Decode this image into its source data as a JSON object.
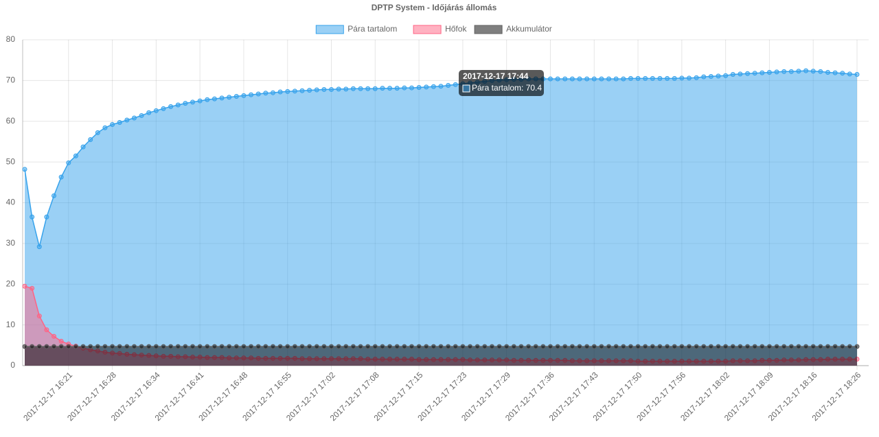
{
  "chart_data": {
    "type": "line",
    "title": "DPTP System - Időjárás állomás",
    "categories": [
      null,
      null,
      null,
      null,
      null,
      null,
      "2017-12-17 16:21",
      null,
      null,
      null,
      null,
      null,
      "2017-12-17 16:28",
      null,
      null,
      null,
      null,
      null,
      "2017-12-17 16:34",
      null,
      null,
      null,
      null,
      null,
      "2017-12-17 16:41",
      null,
      null,
      null,
      null,
      null,
      "2017-12-17 16:48",
      null,
      null,
      null,
      null,
      null,
      "2017-12-17 16:55",
      null,
      null,
      null,
      null,
      null,
      "2017-12-17 17:02",
      null,
      null,
      null,
      null,
      null,
      "2017-12-17 17:08",
      null,
      null,
      null,
      null,
      null,
      "2017-12-17 17:15",
      null,
      null,
      null,
      null,
      null,
      "2017-12-17 17:23",
      null,
      null,
      null,
      null,
      null,
      "2017-12-17 17:29",
      null,
      null,
      null,
      null,
      null,
      "2017-12-17 17:36",
      null,
      null,
      null,
      null,
      null,
      "2017-12-17 17:43",
      null,
      null,
      null,
      null,
      null,
      "2017-12-17 17:50",
      null,
      null,
      null,
      null,
      null,
      "2017-12-17 17:56",
      null,
      null,
      null,
      null,
      null,
      "2017-12-17 18:02",
      null,
      null,
      null,
      null,
      null,
      "2017-12-17 18:09",
      null,
      null,
      null,
      null,
      null,
      "2017-12-17 18:16",
      null,
      null,
      null,
      null,
      null,
      "2017-12-17 18:26"
    ],
    "series": [
      {
        "name": "Pára tartalom",
        "color": "#36a2eb",
        "fill": "rgba(54,162,235,0.5)",
        "values": [
          48.2,
          36.5,
          29.2,
          36.5,
          41.7,
          46.3,
          49.8,
          51.5,
          53.7,
          55.5,
          57.2,
          58.4,
          59.2,
          59.7,
          60.3,
          60.8,
          61.4,
          62.1,
          62.6,
          63.1,
          63.6,
          64.0,
          64.4,
          64.7,
          65.0,
          65.3,
          65.5,
          65.7,
          65.9,
          66.1,
          66.3,
          66.5,
          66.7,
          66.9,
          67.0,
          67.2,
          67.3,
          67.4,
          67.5,
          67.6,
          67.7,
          67.8,
          67.8,
          67.9,
          67.9,
          68.0,
          68.0,
          68.0,
          68.0,
          68.1,
          68.1,
          68.1,
          68.2,
          68.2,
          68.3,
          68.4,
          68.5,
          68.6,
          68.8,
          69.0,
          69.2,
          69.4,
          69.6,
          69.8,
          70.0,
          70.1,
          70.2,
          70.3,
          70.3,
          70.4,
          70.4,
          70.4,
          70.4,
          70.4,
          70.4,
          70.4,
          70.4,
          70.4,
          70.4,
          70.4,
          70.4,
          70.4,
          70.4,
          70.5,
          70.5,
          70.5,
          70.5,
          70.5,
          70.5,
          70.5,
          70.6,
          70.6,
          70.7,
          70.9,
          71.0,
          71.1,
          71.2,
          71.5,
          71.6,
          71.7,
          71.8,
          71.9,
          72.0,
          72.1,
          72.2,
          72.2,
          72.3,
          72.4,
          72.3,
          72.2,
          72.0,
          71.9,
          71.8,
          71.6,
          71.5
        ]
      },
      {
        "name": "Hőfok",
        "color": "#ff6384",
        "fill": "rgba(255,99,132,0.5)",
        "values": [
          19.5,
          19.0,
          12.2,
          8.8,
          7.2,
          6.0,
          5.3,
          4.8,
          4.3,
          3.9,
          3.6,
          3.3,
          3.1,
          3.0,
          2.8,
          2.7,
          2.6,
          2.5,
          2.4,
          2.3,
          2.3,
          2.2,
          2.2,
          2.1,
          2.1,
          2.0,
          2.0,
          2.0,
          1.9,
          1.9,
          1.9,
          1.9,
          1.8,
          1.8,
          1.8,
          1.8,
          1.8,
          1.8,
          1.7,
          1.7,
          1.7,
          1.7,
          1.7,
          1.7,
          1.7,
          1.7,
          1.7,
          1.6,
          1.6,
          1.6,
          1.6,
          1.6,
          1.6,
          1.6,
          1.5,
          1.5,
          1.5,
          1.5,
          1.5,
          1.5,
          1.5,
          1.4,
          1.4,
          1.4,
          1.4,
          1.4,
          1.4,
          1.3,
          1.3,
          1.3,
          1.3,
          1.3,
          1.3,
          1.3,
          1.3,
          1.2,
          1.2,
          1.2,
          1.2,
          1.2,
          1.2,
          1.2,
          1.2,
          1.2,
          1.1,
          1.1,
          1.1,
          1.1,
          1.1,
          1.1,
          1.1,
          1.1,
          1.1,
          1.1,
          1.1,
          1.1,
          1.1,
          1.2,
          1.2,
          1.2,
          1.2,
          1.3,
          1.3,
          1.3,
          1.4,
          1.4,
          1.4,
          1.5,
          1.5,
          1.5,
          1.6,
          1.6,
          1.6,
          1.6,
          1.6
        ]
      },
      {
        "name": "Akkumulátor",
        "color": "#606060",
        "fill": "rgba(0,0,0,0.5)",
        "values": [
          4.7,
          4.7,
          4.7,
          4.7,
          4.7,
          4.7,
          4.7,
          4.7,
          4.7,
          4.7,
          4.7,
          4.7,
          4.7,
          4.7,
          4.7,
          4.7,
          4.7,
          4.7,
          4.7,
          4.7,
          4.7,
          4.7,
          4.7,
          4.7,
          4.7,
          4.7,
          4.7,
          4.7,
          4.7,
          4.7,
          4.7,
          4.7,
          4.7,
          4.7,
          4.7,
          4.7,
          4.7,
          4.7,
          4.7,
          4.7,
          4.7,
          4.7,
          4.7,
          4.7,
          4.7,
          4.7,
          4.7,
          4.7,
          4.7,
          4.7,
          4.7,
          4.7,
          4.7,
          4.7,
          4.7,
          4.7,
          4.7,
          4.7,
          4.7,
          4.7,
          4.7,
          4.7,
          4.7,
          4.7,
          4.7,
          4.7,
          4.7,
          4.7,
          4.7,
          4.7,
          4.7,
          4.7,
          4.7,
          4.7,
          4.7,
          4.7,
          4.7,
          4.7,
          4.7,
          4.7,
          4.7,
          4.7,
          4.7,
          4.7,
          4.7,
          4.7,
          4.7,
          4.7,
          4.7,
          4.7,
          4.7,
          4.7,
          4.7,
          4.7,
          4.7,
          4.7,
          4.7,
          4.7,
          4.7,
          4.7,
          4.7,
          4.7,
          4.7,
          4.7,
          4.7,
          4.7,
          4.7,
          4.7,
          4.7,
          4.7,
          4.7,
          4.7,
          4.7,
          4.7,
          4.7
        ]
      }
    ],
    "ylim": [
      0,
      80
    ],
    "yticks": [
      0,
      10,
      20,
      30,
      40,
      50,
      60,
      70,
      80
    ],
    "grid": true,
    "tooltip": {
      "title": "2017-12-17 17:44",
      "label": "Pára tartalom: 70.4"
    }
  }
}
